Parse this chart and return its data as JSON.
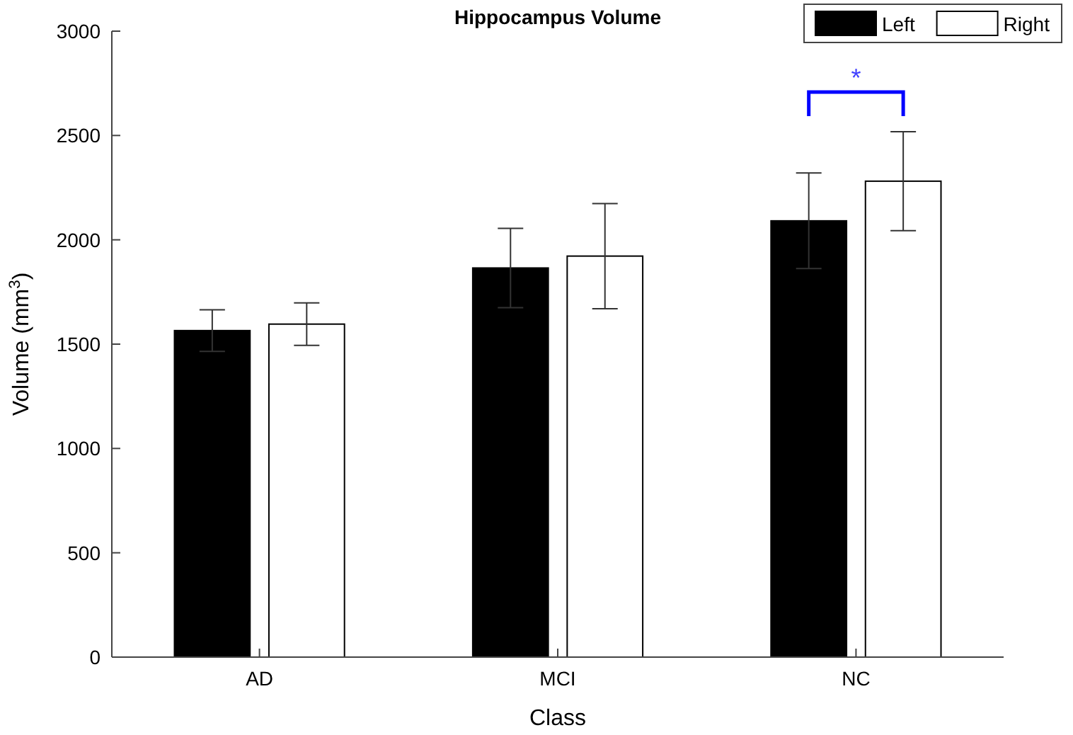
{
  "chart_data": {
    "type": "bar",
    "title": "Hippocampus Volume",
    "xlabel": "Class",
    "ylabel": "Volume (mm$^{3}$)",
    "categories": [
      "AD",
      "MCI",
      "NC"
    ],
    "series": [
      {
        "name": "Left",
        "color": "#000000",
        "values": [
          1565,
          1865,
          2091
        ],
        "errors": [
          100,
          190,
          229
        ]
      },
      {
        "name": "Right",
        "color": "#ffffff",
        "values": [
          1596,
          1922,
          2281
        ],
        "errors": [
          102,
          252,
          237
        ]
      }
    ],
    "ylim": [
      0,
      3000
    ],
    "yticks": [
      0,
      500,
      1000,
      1500,
      2000,
      2500,
      3000
    ],
    "legend": "top right",
    "annotations": [
      "*"
    ]
  }
}
